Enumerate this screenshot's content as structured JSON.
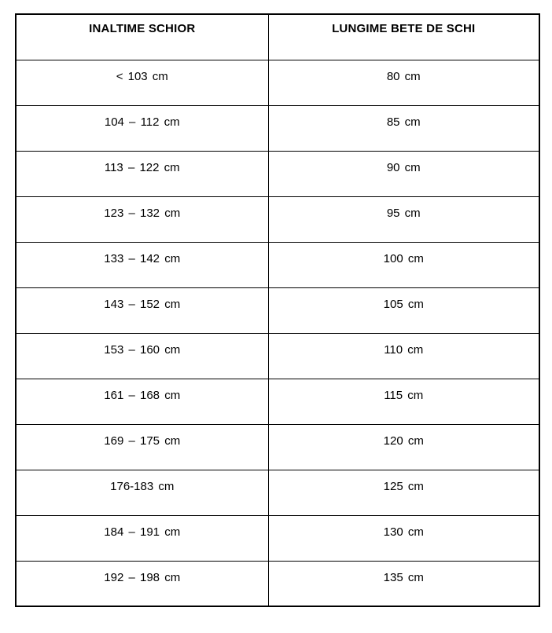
{
  "page": {
    "background_color": "#ffffff",
    "border_color": "#000000",
    "text_color": "#000000"
  },
  "table": {
    "columns": [
      {
        "label": "INALTIME SCHIOR"
      },
      {
        "label": "LUNGIME BETE DE SCHI"
      }
    ],
    "rows": [
      {
        "inaltime": "< 103 cm",
        "lungime": "80 cm"
      },
      {
        "inaltime": "104 – 112 cm",
        "lungime": "85 cm"
      },
      {
        "inaltime": "113 – 122 cm",
        "lungime": "90 cm"
      },
      {
        "inaltime": "123 – 132 cm",
        "lungime": "95 cm"
      },
      {
        "inaltime": "133 – 142 cm",
        "lungime": "100 cm"
      },
      {
        "inaltime": "143 – 152 cm",
        "lungime": "105 cm"
      },
      {
        "inaltime": "153 – 160 cm",
        "lungime": "110 cm"
      },
      {
        "inaltime": "161 – 168 cm",
        "lungime": "115 cm"
      },
      {
        "inaltime": "169 – 175 cm",
        "lungime": "120 cm"
      },
      {
        "inaltime": "176-183 cm",
        "lungime": "125 cm"
      },
      {
        "inaltime": "184 – 191 cm",
        "lungime": "130 cm"
      },
      {
        "inaltime": "192 – 198 cm",
        "lungime": "135 cm"
      }
    ]
  }
}
